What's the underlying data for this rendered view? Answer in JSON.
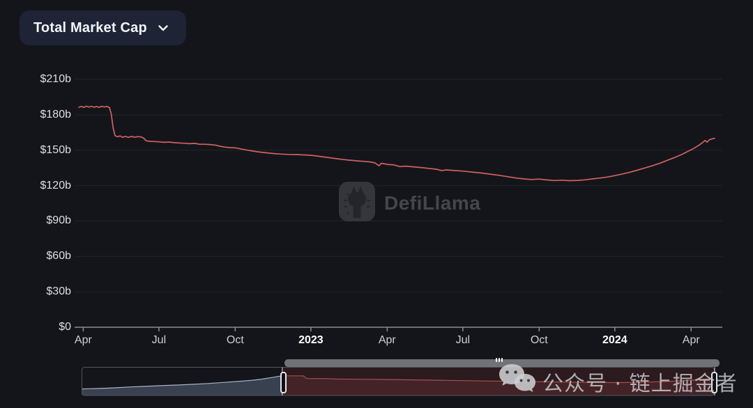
{
  "header": {
    "metric_button": {
      "label": "Total Market Cap",
      "icon": "chevron-down-icon"
    }
  },
  "watermark_center": {
    "brand": "DefiLlama",
    "icon": "llama-logo-icon"
  },
  "watermark_overlay": {
    "text": "公众号 · 链上掘金者",
    "icon": "wechat-icon"
  },
  "colors": {
    "background": "#14151a",
    "button_bg": "#1e2336",
    "line": "#d06260",
    "grid": "#232529",
    "axis": "#8b8d93",
    "nav_left_fill": "#394050",
    "nav_left_line": "#a8b4c0",
    "nav_right_fill": "#432327",
    "nav_right_line": "#a8504c",
    "nav_selected_tint": "rgba(150,50,52,0.18)",
    "nav_frame": "#53555b",
    "scrollbar": "#717276",
    "handle_border": "#e6e6e9",
    "brand_watermark_text": "#45464b",
    "overlay_watermark_text": "rgba(205,206,210,0.82)"
  },
  "chart_data": {
    "type": "line",
    "title": "Total Market Cap",
    "unit": "USD billions",
    "x_range": [
      "Apr 2022",
      "Apr 2024"
    ],
    "ylim": [
      0,
      210
    ],
    "grid": true,
    "legend": "none",
    "y_ticks": [
      {
        "label": "$210b",
        "value": 210
      },
      {
        "label": "$180b",
        "value": 180
      },
      {
        "label": "$150b",
        "value": 150
      },
      {
        "label": "$120b",
        "value": 120
      },
      {
        "label": "$90b",
        "value": 90
      },
      {
        "label": "$60b",
        "value": 60
      },
      {
        "label": "$30b",
        "value": 30
      },
      {
        "label": "$0",
        "value": 0
      }
    ],
    "x_ticks": [
      {
        "label": "Apr",
        "t": 0.007,
        "bold": false
      },
      {
        "label": "Jul",
        "t": 0.126,
        "bold": false
      },
      {
        "label": "Oct",
        "t": 0.246,
        "bold": false
      },
      {
        "label": "2023",
        "t": 0.365,
        "bold": true
      },
      {
        "label": "Apr",
        "t": 0.485,
        "bold": false
      },
      {
        "label": "Jul",
        "t": 0.604,
        "bold": false
      },
      {
        "label": "Oct",
        "t": 0.724,
        "bold": false
      },
      {
        "label": "2024",
        "t": 0.843,
        "bold": true
      },
      {
        "label": "Apr",
        "t": 0.963,
        "bold": false
      }
    ],
    "series": [
      {
        "name": "Total Market Cap",
        "color": "#d06260",
        "points": [
          [
            0,
            186.4
          ],
          [
            0.004,
            187.1
          ],
          [
            0.008,
            186.3
          ],
          [
            0.012,
            187.3
          ],
          [
            0.016,
            186.5
          ],
          [
            0.02,
            187.2
          ],
          [
            0.024,
            186.4
          ],
          [
            0.028,
            187.0
          ],
          [
            0.032,
            186.3
          ],
          [
            0.036,
            187.2
          ],
          [
            0.04,
            186.6
          ],
          [
            0.044,
            187.1
          ],
          [
            0.048,
            186.2
          ],
          [
            0.051,
            181.0
          ],
          [
            0.054,
            169.0
          ],
          [
            0.057,
            162.3
          ],
          [
            0.061,
            161.4
          ],
          [
            0.065,
            162.1
          ],
          [
            0.069,
            160.9
          ],
          [
            0.073,
            161.7
          ],
          [
            0.078,
            160.9
          ],
          [
            0.083,
            161.6
          ],
          [
            0.088,
            161.0
          ],
          [
            0.093,
            161.5
          ],
          [
            0.098,
            161.2
          ],
          [
            0.102,
            160.2
          ],
          [
            0.106,
            158.0
          ],
          [
            0.112,
            157.5
          ],
          [
            0.12,
            157.3
          ],
          [
            0.126,
            157.1
          ],
          [
            0.134,
            156.7
          ],
          [
            0.142,
            156.9
          ],
          [
            0.15,
            156.4
          ],
          [
            0.158,
            156.1
          ],
          [
            0.166,
            155.9
          ],
          [
            0.174,
            155.5
          ],
          [
            0.182,
            155.8
          ],
          [
            0.19,
            155.1
          ],
          [
            0.198,
            155.0
          ],
          [
            0.206,
            154.8
          ],
          [
            0.214,
            154.4
          ],
          [
            0.222,
            153.4
          ],
          [
            0.23,
            152.6
          ],
          [
            0.238,
            152.2
          ],
          [
            0.246,
            152.0
          ],
          [
            0.258,
            150.8
          ],
          [
            0.27,
            149.6
          ],
          [
            0.282,
            148.6
          ],
          [
            0.294,
            147.8
          ],
          [
            0.306,
            147.2
          ],
          [
            0.318,
            146.7
          ],
          [
            0.33,
            146.4
          ],
          [
            0.342,
            146.3
          ],
          [
            0.354,
            146.0
          ],
          [
            0.365,
            145.7
          ],
          [
            0.377,
            144.9
          ],
          [
            0.389,
            144.0
          ],
          [
            0.401,
            143.1
          ],
          [
            0.413,
            142.3
          ],
          [
            0.425,
            141.6
          ],
          [
            0.437,
            141.0
          ],
          [
            0.449,
            140.5
          ],
          [
            0.458,
            140.1
          ],
          [
            0.466,
            139.2
          ],
          [
            0.472,
            136.8
          ],
          [
            0.476,
            138.9
          ],
          [
            0.485,
            138.0
          ],
          [
            0.496,
            137.5
          ],
          [
            0.505,
            136.1
          ],
          [
            0.514,
            136.5
          ],
          [
            0.526,
            135.9
          ],
          [
            0.538,
            135.3
          ],
          [
            0.55,
            134.6
          ],
          [
            0.562,
            133.9
          ],
          [
            0.571,
            132.7
          ],
          [
            0.578,
            133.3
          ],
          [
            0.59,
            132.8
          ],
          [
            0.604,
            132.3
          ],
          [
            0.618,
            131.5
          ],
          [
            0.632,
            130.7
          ],
          [
            0.646,
            129.8
          ],
          [
            0.66,
            128.8
          ],
          [
            0.674,
            127.6
          ],
          [
            0.688,
            126.4
          ],
          [
            0.702,
            125.6
          ],
          [
            0.712,
            125.2
          ],
          [
            0.724,
            125.5
          ],
          [
            0.736,
            124.8
          ],
          [
            0.748,
            124.3
          ],
          [
            0.76,
            124.6
          ],
          [
            0.772,
            124.2
          ],
          [
            0.784,
            124.4
          ],
          [
            0.796,
            124.9
          ],
          [
            0.808,
            125.7
          ],
          [
            0.82,
            126.4
          ],
          [
            0.832,
            127.3
          ],
          [
            0.843,
            128.5
          ],
          [
            0.854,
            129.7
          ],
          [
            0.866,
            131.2
          ],
          [
            0.878,
            133.0
          ],
          [
            0.89,
            134.9
          ],
          [
            0.902,
            136.8
          ],
          [
            0.914,
            139.0
          ],
          [
            0.926,
            141.5
          ],
          [
            0.938,
            144.0
          ],
          [
            0.949,
            146.6
          ],
          [
            0.958,
            149.0
          ],
          [
            0.966,
            151.2
          ],
          [
            0.974,
            153.8
          ],
          [
            0.98,
            156.0
          ],
          [
            0.985,
            158.3
          ],
          [
            0.988,
            156.8
          ],
          [
            0.992,
            158.9
          ],
          [
            0.996,
            159.6
          ],
          [
            1,
            160.1
          ]
        ]
      }
    ],
    "navigator": {
      "selected_start_t": 0.317,
      "selected_end_t": 1.0,
      "full_history_left_series": [
        [
          0,
          66
        ],
        [
          0.025,
          70
        ],
        [
          0.05,
          76
        ],
        [
          0.075,
          84
        ],
        [
          0.1,
          90
        ],
        [
          0.125,
          96
        ],
        [
          0.15,
          102
        ],
        [
          0.175,
          108
        ],
        [
          0.2,
          116
        ],
        [
          0.225,
          126
        ],
        [
          0.25,
          136
        ],
        [
          0.27,
          146
        ],
        [
          0.285,
          156
        ],
        [
          0.3,
          170
        ],
        [
          0.31,
          180
        ],
        [
          0.317,
          186
        ]
      ],
      "selected_right_series": [
        [
          0.317,
          186
        ],
        [
          0.35,
          186
        ],
        [
          0.356,
          162
        ],
        [
          0.385,
          161
        ],
        [
          0.403,
          157
        ],
        [
          0.454,
          155
        ],
        [
          0.485,
          152
        ],
        [
          0.566,
          146
        ],
        [
          0.648,
          138
        ],
        [
          0.73,
          132
        ],
        [
          0.795,
          126
        ],
        [
          0.85,
          124
        ],
        [
          0.893,
          128.5
        ],
        [
          0.933,
          137
        ],
        [
          0.965,
          146.5
        ],
        [
          0.986,
          156
        ],
        [
          1,
          160
        ]
      ]
    }
  }
}
